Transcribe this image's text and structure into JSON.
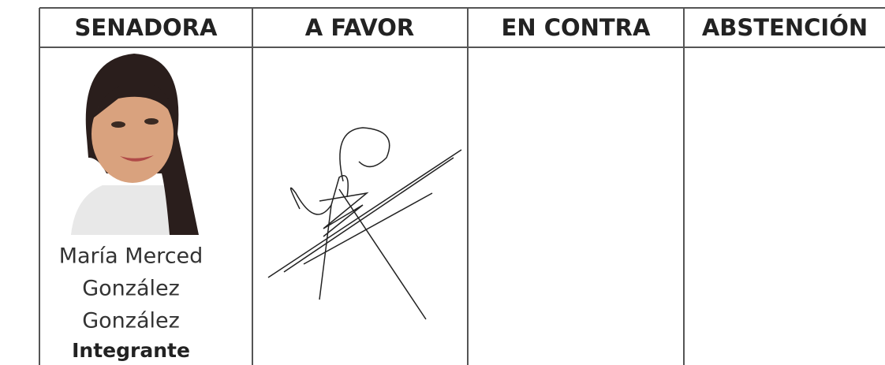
{
  "table": {
    "header": [
      "SENADORA",
      "A FAVOR",
      "EN CONTRA",
      "ABSTENCIÓN"
    ],
    "rows": [
      {
        "name_lines": [
          "María Merced",
          "González",
          "González"
        ],
        "role": "Integrante"
      }
    ]
  }
}
